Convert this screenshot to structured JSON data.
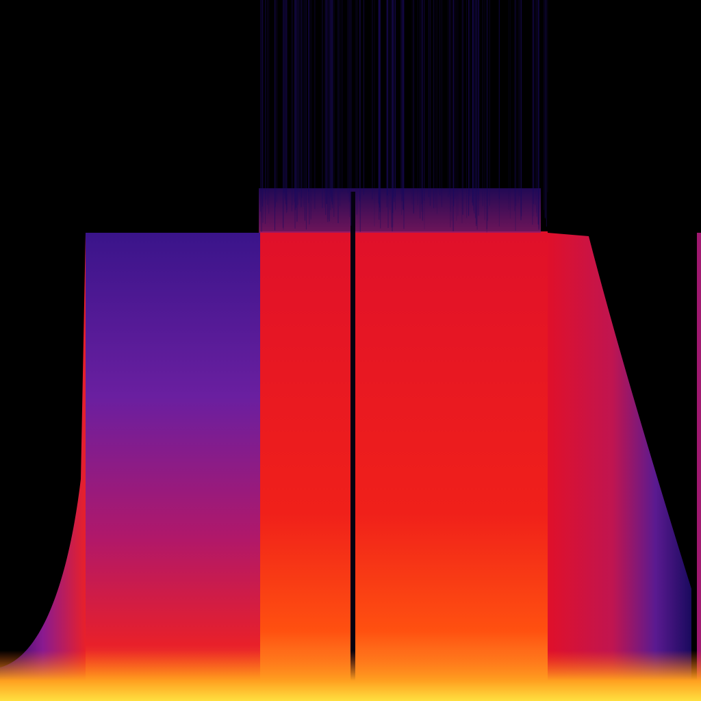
{
  "palette": {
    "background": "#000000",
    "low": "#1a0a5e",
    "mid_low": "#6a1fa0",
    "mid": "#e0102a",
    "high": "#ff5a10",
    "peak": "#ffe040"
  }
}
